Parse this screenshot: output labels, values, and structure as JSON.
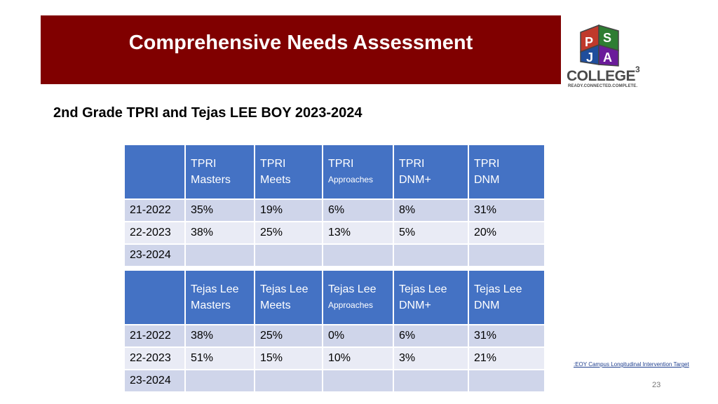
{
  "slide": {
    "title": "Comprehensive Needs Assessment",
    "subtitle": "2nd Grade TPRI and Tejas LEE BOY 2023-2024",
    "page_number": "23",
    "target_note": ":EOY Campus Longitudinal Intervention Target"
  },
  "logo": {
    "letters": [
      "P",
      "S",
      "J",
      "A"
    ],
    "college": "COLLEGE",
    "superscript": "3",
    "tagline": "READY.CONNECTED.COMPLETE.",
    "colors": [
      "#c0392b",
      "#2e7d32",
      "#1f4e9c",
      "#6a1b9a"
    ]
  },
  "tpri_table": {
    "headers": [
      {
        "line1": "",
        "line2": ""
      },
      {
        "line1": "TPRI",
        "line2": "Masters"
      },
      {
        "line1": "TPRI",
        "line2": "Meets"
      },
      {
        "line1": "TPRI",
        "line2": "Approaches"
      },
      {
        "line1": "TPRI",
        "line2": "DNM+"
      },
      {
        "line1": "TPRI",
        "line2": "DNM"
      }
    ],
    "rows": [
      [
        "21-2022",
        "35%",
        "19%",
        "6%",
        "8%",
        "31%"
      ],
      [
        "22-2023",
        "38%",
        "25%",
        "13%",
        "5%",
        "20%"
      ],
      [
        "23-2024",
        "",
        "",
        "",
        "",
        ""
      ]
    ]
  },
  "tejas_table": {
    "headers": [
      {
        "line1": "",
        "line2": ""
      },
      {
        "line1": "Tejas Lee",
        "line2": "Masters"
      },
      {
        "line1": "Tejas Lee",
        "line2": "Meets"
      },
      {
        "line1": "Tejas Lee",
        "line2": "Approaches"
      },
      {
        "line1": "Tejas Lee",
        "line2": "DNM+"
      },
      {
        "line1": "Tejas Lee",
        "line2": "DNM"
      }
    ],
    "rows": [
      [
        "21-2022",
        "38%",
        "25%",
        "0%",
        "6%",
        "31%"
      ],
      [
        "22-2023",
        "51%",
        "15%",
        "10%",
        "3%",
        "21%"
      ],
      [
        "23-2024",
        "",
        "",
        "",
        "",
        ""
      ]
    ]
  },
  "colors": {
    "banner": "#800000",
    "header_cell": "#4472c4",
    "row_dark": "#cfd5ea",
    "row_light": "#e9ebf5"
  }
}
